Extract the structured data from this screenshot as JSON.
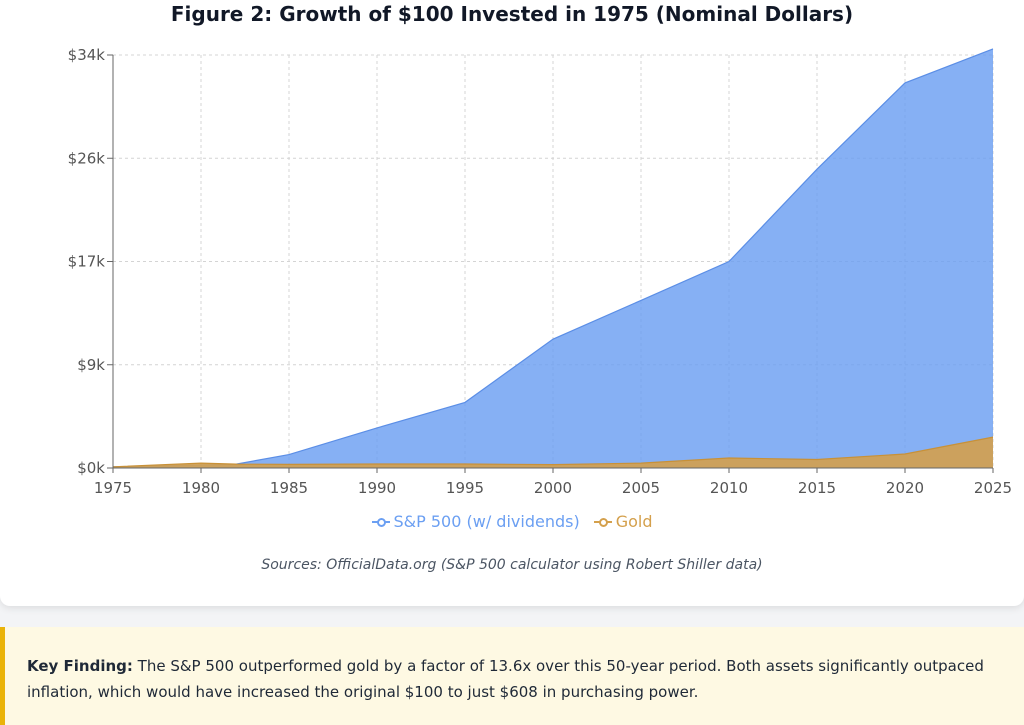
{
  "chart_data": {
    "type": "area",
    "title": "Figure 2: Growth of $100 Invested in 1975 (Nominal Dollars)",
    "x": [
      1975,
      1980,
      1982,
      1985,
      1990,
      1995,
      2000,
      2005,
      2010,
      2015,
      2020,
      2025
    ],
    "series": [
      {
        "name": "S&P 500 (w/ dividends)",
        "color": "#6b9ff2",
        "values": [
          100,
          250,
          320,
          1100,
          3300,
          5400,
          10600,
          13800,
          17000,
          24600,
          31700,
          34500
        ]
      },
      {
        "name": "Gold",
        "color": "#d4a04c",
        "values": [
          100,
          400,
          320,
          300,
          330,
          330,
          280,
          400,
          820,
          700,
          1150,
          2540
        ]
      }
    ],
    "xticks": [
      "1975",
      "1980",
      "1985",
      "1990",
      "1995",
      "2000",
      "2005",
      "2010",
      "2015",
      "2020",
      "2025"
    ],
    "yticks": [
      {
        "value": 0,
        "label": "$0k"
      },
      {
        "value": 8500,
        "label": "$9k"
      },
      {
        "value": 17000,
        "label": "$17k"
      },
      {
        "value": 25500,
        "label": "$26k"
      },
      {
        "value": 34000,
        "label": "$34k"
      }
    ],
    "xlim": [
      1975,
      2025
    ],
    "ylim": [
      0,
      34000
    ],
    "grid": true,
    "legend_position": "bottom"
  },
  "source_text": "Sources: OfficialData.org (S&P 500 calculator using Robert Shiller data)",
  "finding": {
    "label": "Key Finding:",
    "text": " The S&P 500 outperformed gold by a factor of 13.6x over this 50-year period. Both assets significantly outpaced inflation, which would have increased the original $100 to just $608 in purchasing power."
  }
}
